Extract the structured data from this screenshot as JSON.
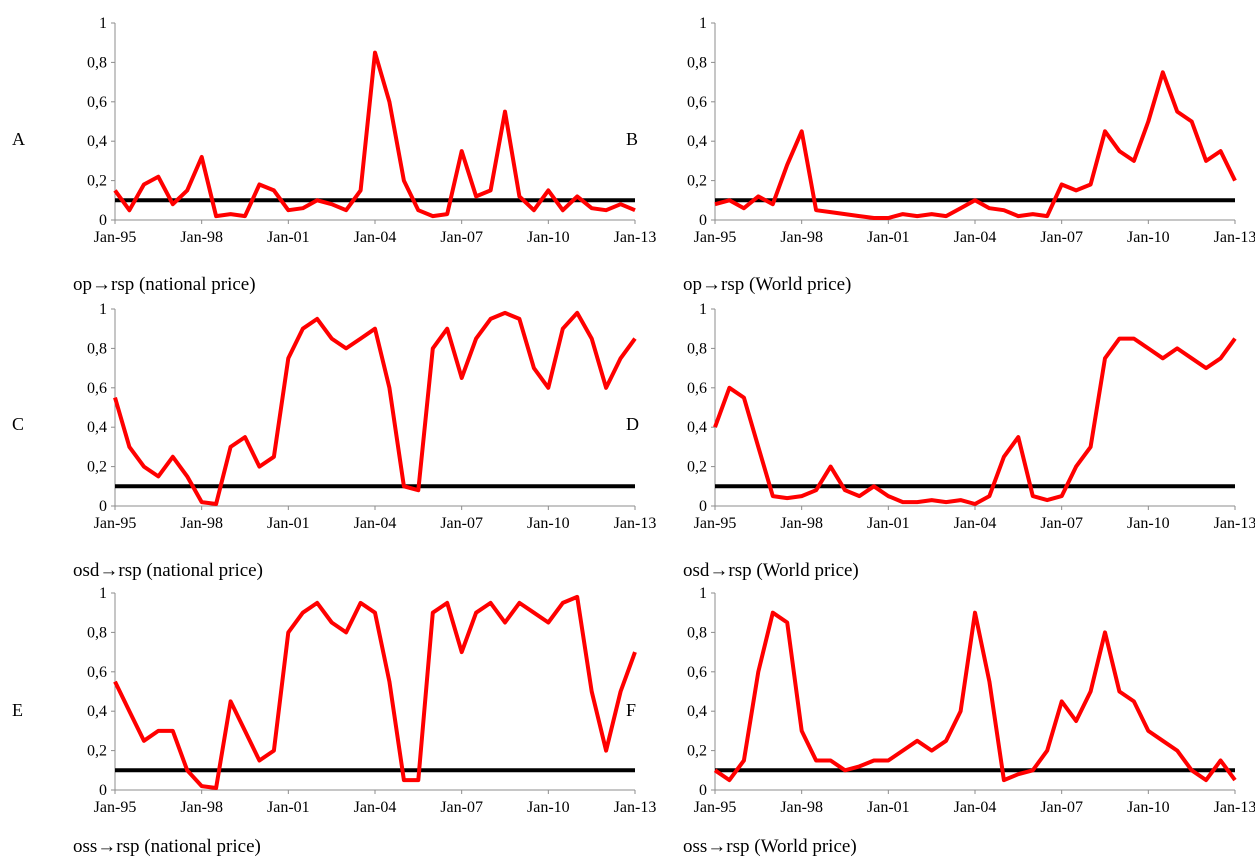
{
  "chart_data": [
    {
      "type": "line",
      "letter": "A",
      "caption": "op→rsp (national price)",
      "ylim": [
        0,
        1
      ],
      "yticks": [
        "0",
        "0,2",
        "0,4",
        "0,6",
        "0,8",
        "1"
      ],
      "xticks": [
        "Jan-95",
        "Jan-98",
        "Jan-01",
        "Jan-04",
        "Jan-07",
        "Jan-10",
        "Jan-13"
      ],
      "xlim": [
        "Jan-95",
        "Jan-13"
      ],
      "threshold": 0.1,
      "series": [
        {
          "color": "#ff0000",
          "x": [
            "Jan-95",
            "Jul-95",
            "Jan-96",
            "Jul-96",
            "Jan-97",
            "Jul-97",
            "Jan-98",
            "Jul-98",
            "Jan-99",
            "Jul-99",
            "Jan-00",
            "Jul-00",
            "Jan-01",
            "Jul-01",
            "Jan-02",
            "Jul-02",
            "Jan-03",
            "Jul-03",
            "Jan-04",
            "Jul-04",
            "Jan-05",
            "Jul-05",
            "Jan-06",
            "Jul-06",
            "Jan-07",
            "Jul-07",
            "Jan-08",
            "Jul-08",
            "Jan-09",
            "Jul-09",
            "Jan-10",
            "Jul-10",
            "Jan-11",
            "Jul-11",
            "Jan-12",
            "Jul-12",
            "Jan-13"
          ],
          "y": [
            0.15,
            0.05,
            0.18,
            0.22,
            0.08,
            0.15,
            0.32,
            0.02,
            0.03,
            0.02,
            0.18,
            0.15,
            0.05,
            0.06,
            0.1,
            0.08,
            0.05,
            0.15,
            0.85,
            0.6,
            0.2,
            0.05,
            0.02,
            0.03,
            0.35,
            0.12,
            0.15,
            0.55,
            0.12,
            0.05,
            0.15,
            0.05,
            0.12,
            0.06,
            0.05,
            0.08,
            0.05
          ]
        }
      ]
    },
    {
      "type": "line",
      "letter": "B",
      "caption": "op→rsp (World price)",
      "ylim": [
        0,
        1
      ],
      "yticks": [
        "0",
        "0,2",
        "0,4",
        "0,6",
        "0,8",
        "1"
      ],
      "xticks": [
        "Jan-95",
        "Jan-98",
        "Jan-01",
        "Jan-04",
        "Jan-07",
        "Jan-10",
        "Jan-13"
      ],
      "xlim": [
        "Jan-95",
        "Jan-13"
      ],
      "threshold": 0.1,
      "series": [
        {
          "color": "#ff0000",
          "x": [
            "Jan-95",
            "Jul-95",
            "Jan-96",
            "Jul-96",
            "Jan-97",
            "Jul-97",
            "Jan-98",
            "Jul-98",
            "Jan-99",
            "Jul-99",
            "Jan-00",
            "Jul-00",
            "Jan-01",
            "Jul-01",
            "Jan-02",
            "Jul-02",
            "Jan-03",
            "Jul-03",
            "Jan-04",
            "Jul-04",
            "Jan-05",
            "Jul-05",
            "Jan-06",
            "Jul-06",
            "Jan-07",
            "Jul-07",
            "Jan-08",
            "Jul-08",
            "Jan-09",
            "Jul-09",
            "Jan-10",
            "Jul-10",
            "Jan-11",
            "Jul-11",
            "Jan-12",
            "Jul-12",
            "Jan-13"
          ],
          "y": [
            0.08,
            0.1,
            0.06,
            0.12,
            0.08,
            0.28,
            0.45,
            0.05,
            0.04,
            0.03,
            0.02,
            0.01,
            0.01,
            0.03,
            0.02,
            0.03,
            0.02,
            0.06,
            0.1,
            0.06,
            0.05,
            0.02,
            0.03,
            0.02,
            0.18,
            0.15,
            0.18,
            0.45,
            0.35,
            0.3,
            0.5,
            0.75,
            0.55,
            0.5,
            0.3,
            0.35,
            0.2
          ]
        }
      ]
    },
    {
      "type": "line",
      "letter": "C",
      "caption": "osd→rsp (national price)",
      "ylim": [
        0,
        1
      ],
      "yticks": [
        "0",
        "0,2",
        "0,4",
        "0,6",
        "0,8",
        "1"
      ],
      "xticks": [
        "Jan-95",
        "Jan-98",
        "Jan-01",
        "Jan-04",
        "Jan-07",
        "Jan-10",
        "Jan-13"
      ],
      "xlim": [
        "Jan-95",
        "Jan-13"
      ],
      "threshold": 0.1,
      "series": [
        {
          "color": "#ff0000",
          "x": [
            "Jan-95",
            "Jul-95",
            "Jan-96",
            "Jul-96",
            "Jan-97",
            "Jul-97",
            "Jan-98",
            "Jul-98",
            "Jan-99",
            "Jul-99",
            "Jan-00",
            "Jul-00",
            "Jan-01",
            "Jul-01",
            "Jan-02",
            "Jul-02",
            "Jan-03",
            "Jul-03",
            "Jan-04",
            "Jul-04",
            "Jan-05",
            "Jul-05",
            "Jan-06",
            "Jul-06",
            "Jan-07",
            "Jul-07",
            "Jan-08",
            "Jul-08",
            "Jan-09",
            "Jul-09",
            "Jan-10",
            "Jul-10",
            "Jan-11",
            "Jul-11",
            "Jan-12",
            "Jul-12",
            "Jan-13"
          ],
          "y": [
            0.55,
            0.3,
            0.2,
            0.15,
            0.25,
            0.15,
            0.02,
            0.01,
            0.3,
            0.35,
            0.2,
            0.25,
            0.75,
            0.9,
            0.95,
            0.85,
            0.8,
            0.85,
            0.9,
            0.6,
            0.1,
            0.08,
            0.8,
            0.9,
            0.65,
            0.85,
            0.95,
            0.98,
            0.95,
            0.7,
            0.6,
            0.9,
            0.98,
            0.85,
            0.6,
            0.75,
            0.85
          ]
        }
      ]
    },
    {
      "type": "line",
      "letter": "D",
      "caption": "osd→rsp (World price)",
      "ylim": [
        0,
        1
      ],
      "yticks": [
        "0",
        "0,2",
        "0,4",
        "0,6",
        "0,8",
        "1"
      ],
      "xticks": [
        "Jan-95",
        "Jan-98",
        "Jan-01",
        "Jan-04",
        "Jan-07",
        "Jan-10",
        "Jan-13"
      ],
      "xlim": [
        "Jan-95",
        "Jan-13"
      ],
      "threshold": 0.1,
      "series": [
        {
          "color": "#ff0000",
          "x": [
            "Jan-95",
            "Jul-95",
            "Jan-96",
            "Jul-96",
            "Jan-97",
            "Jul-97",
            "Jan-98",
            "Jul-98",
            "Jan-99",
            "Jul-99",
            "Jan-00",
            "Jul-00",
            "Jan-01",
            "Jul-01",
            "Jan-02",
            "Jul-02",
            "Jan-03",
            "Jul-03",
            "Jan-04",
            "Jul-04",
            "Jan-05",
            "Jul-05",
            "Jan-06",
            "Jul-06",
            "Jan-07",
            "Jul-07",
            "Jan-08",
            "Jul-08",
            "Jan-09",
            "Jul-09",
            "Jan-10",
            "Jul-10",
            "Jan-11",
            "Jul-11",
            "Jan-12",
            "Jul-12",
            "Jan-13"
          ],
          "y": [
            0.4,
            0.6,
            0.55,
            0.3,
            0.05,
            0.04,
            0.05,
            0.08,
            0.2,
            0.08,
            0.05,
            0.1,
            0.05,
            0.02,
            0.02,
            0.03,
            0.02,
            0.03,
            0.01,
            0.05,
            0.25,
            0.35,
            0.05,
            0.03,
            0.05,
            0.2,
            0.3,
            0.75,
            0.85,
            0.85,
            0.8,
            0.75,
            0.8,
            0.75,
            0.7,
            0.75,
            0.85
          ]
        }
      ]
    },
    {
      "type": "line",
      "letter": "E",
      "caption": "oss→rsp (national price)",
      "ylim": [
        0,
        1
      ],
      "yticks": [
        "0",
        "0,2",
        "0,4",
        "0,6",
        "0,8",
        "1"
      ],
      "xticks": [
        "Jan-95",
        "Jan-98",
        "Jan-01",
        "Jan-04",
        "Jan-07",
        "Jan-10",
        "Jan-13"
      ],
      "xlim": [
        "Jan-95",
        "Jan-13"
      ],
      "threshold": 0.1,
      "series": [
        {
          "color": "#ff0000",
          "x": [
            "Jan-95",
            "Jul-95",
            "Jan-96",
            "Jul-96",
            "Jan-97",
            "Jul-97",
            "Jan-98",
            "Jul-98",
            "Jan-99",
            "Jul-99",
            "Jan-00",
            "Jul-00",
            "Jan-01",
            "Jul-01",
            "Jan-02",
            "Jul-02",
            "Jan-03",
            "Jul-03",
            "Jan-04",
            "Jul-04",
            "Jan-05",
            "Jul-05",
            "Jan-06",
            "Jul-06",
            "Jan-07",
            "Jul-07",
            "Jan-08",
            "Jul-08",
            "Jan-09",
            "Jul-09",
            "Jan-10",
            "Jul-10",
            "Jan-11",
            "Jul-11",
            "Jan-12",
            "Jul-12",
            "Jan-13"
          ],
          "y": [
            0.55,
            0.4,
            0.25,
            0.3,
            0.3,
            0.1,
            0.02,
            0.01,
            0.45,
            0.3,
            0.15,
            0.2,
            0.8,
            0.9,
            0.95,
            0.85,
            0.8,
            0.95,
            0.9,
            0.55,
            0.05,
            0.05,
            0.9,
            0.95,
            0.7,
            0.9,
            0.95,
            0.85,
            0.95,
            0.9,
            0.85,
            0.95,
            0.98,
            0.5,
            0.2,
            0.5,
            0.7
          ]
        }
      ]
    },
    {
      "type": "line",
      "letter": "F",
      "caption": "oss→rsp (World price)",
      "ylim": [
        0,
        1
      ],
      "yticks": [
        "0",
        "0,2",
        "0,4",
        "0,6",
        "0,8",
        "1"
      ],
      "xticks": [
        "Jan-95",
        "Jan-98",
        "Jan-01",
        "Jan-04",
        "Jan-07",
        "Jan-10",
        "Jan-13"
      ],
      "xlim": [
        "Jan-95",
        "Jan-13"
      ],
      "threshold": 0.1,
      "series": [
        {
          "color": "#ff0000",
          "x": [
            "Jan-95",
            "Jul-95",
            "Jan-96",
            "Jul-96",
            "Jan-97",
            "Jul-97",
            "Jan-98",
            "Jul-98",
            "Jan-99",
            "Jul-99",
            "Jan-00",
            "Jul-00",
            "Jan-01",
            "Jul-01",
            "Jan-02",
            "Jul-02",
            "Jan-03",
            "Jul-03",
            "Jan-04",
            "Jul-04",
            "Jan-05",
            "Jul-05",
            "Jan-06",
            "Jul-06",
            "Jan-07",
            "Jul-07",
            "Jan-08",
            "Jul-08",
            "Jan-09",
            "Jul-09",
            "Jan-10",
            "Jul-10",
            "Jan-11",
            "Jul-11",
            "Jan-12",
            "Jul-12",
            "Jan-13"
          ],
          "y": [
            0.1,
            0.05,
            0.15,
            0.6,
            0.9,
            0.85,
            0.3,
            0.15,
            0.15,
            0.1,
            0.12,
            0.15,
            0.15,
            0.2,
            0.25,
            0.2,
            0.25,
            0.4,
            0.9,
            0.55,
            0.05,
            0.08,
            0.1,
            0.2,
            0.45,
            0.35,
            0.5,
            0.8,
            0.5,
            0.45,
            0.3,
            0.25,
            0.2,
            0.1,
            0.05,
            0.15,
            0.05
          ]
        }
      ]
    }
  ]
}
